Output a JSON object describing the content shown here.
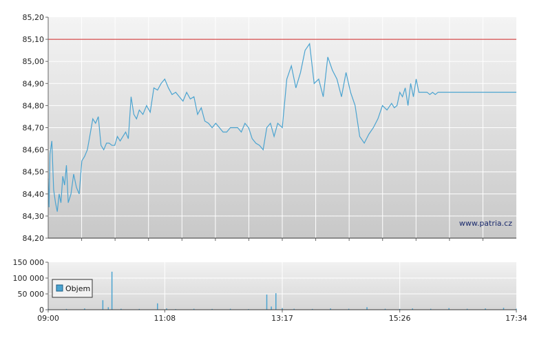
{
  "chart_data": [
    {
      "type": "line",
      "title": "",
      "xlabel": "",
      "ylabel": "",
      "ylim": [
        84.2,
        85.2
      ],
      "y_ticks": [
        "84,20",
        "84,30",
        "84,40",
        "84,50",
        "84,60",
        "84,70",
        "84,80",
        "84,90",
        "85,00",
        "85,10",
        "85,20"
      ],
      "reference_line": {
        "value": 85.1,
        "color": "#cc2222"
      },
      "grid": true,
      "line_color": "#4aa3d0",
      "watermark": "www.patria.cz",
      "series": [
        {
          "x": [
            "09:00",
            "09:01",
            "09:02",
            "09:04",
            "09:06",
            "09:08",
            "09:10",
            "09:12",
            "09:14",
            "09:16",
            "09:18",
            "09:20",
            "09:22",
            "09:25",
            "09:28",
            "09:31",
            "09:34",
            "09:37",
            "09:40",
            "09:43",
            "09:46",
            "09:49",
            "09:52",
            "09:55",
            "09:58",
            "10:01",
            "10:04",
            "10:07",
            "10:10",
            "10:13",
            "10:16",
            "10:19",
            "10:22",
            "10:25",
            "10:28",
            "10:31",
            "10:34",
            "10:37",
            "10:40",
            "10:44",
            "10:48",
            "10:52",
            "10:56",
            "11:00",
            "11:04",
            "11:08",
            "11:12",
            "11:16",
            "11:20",
            "11:24",
            "11:28",
            "11:32",
            "11:36",
            "11:40",
            "11:44",
            "11:48",
            "11:52",
            "11:56",
            "12:00",
            "12:04",
            "12:08",
            "12:12",
            "12:16",
            "12:20",
            "12:24",
            "12:28",
            "12:32",
            "12:36",
            "12:40",
            "12:44",
            "12:48",
            "12:52",
            "12:56",
            "13:00",
            "13:04",
            "13:08",
            "13:12",
            "13:17",
            "13:22",
            "13:27",
            "13:32",
            "13:37",
            "13:42",
            "13:47",
            "13:52",
            "13:57",
            "14:02",
            "14:07",
            "14:12",
            "14:17",
            "14:22",
            "14:27",
            "14:32",
            "14:37",
            "14:42",
            "14:47",
            "14:52",
            "14:57",
            "15:02",
            "15:07",
            "15:12",
            "15:17",
            "15:20",
            "15:23",
            "15:26",
            "15:29",
            "15:32",
            "15:35",
            "15:38",
            "15:41",
            "15:44",
            "15:47",
            "15:50",
            "15:53",
            "15:56",
            "15:59",
            "16:02",
            "16:05",
            "16:08",
            "16:11",
            "16:14",
            "16:17",
            "16:20",
            "16:23",
            "16:26",
            "16:30",
            "16:34",
            "16:38",
            "16:42",
            "16:46",
            "16:50",
            "16:54",
            "16:58",
            "17:02",
            "17:06",
            "17:10",
            "17:14",
            "17:18",
            "17:22",
            "17:26",
            "17:30",
            "17:34"
          ],
          "values": [
            84.47,
            84.34,
            84.58,
            84.64,
            84.42,
            84.36,
            84.32,
            84.4,
            84.36,
            84.48,
            84.44,
            84.53,
            84.36,
            84.4,
            84.49,
            84.43,
            84.4,
            84.55,
            84.57,
            84.6,
            84.67,
            84.74,
            84.72,
            84.75,
            84.62,
            84.6,
            84.63,
            84.63,
            84.62,
            84.62,
            84.66,
            84.64,
            84.66,
            84.68,
            84.65,
            84.84,
            84.76,
            84.74,
            84.78,
            84.76,
            84.8,
            84.77,
            84.88,
            84.87,
            84.9,
            84.92,
            84.88,
            84.85,
            84.86,
            84.84,
            84.82,
            84.86,
            84.83,
            84.84,
            84.76,
            84.79,
            84.73,
            84.72,
            84.7,
            84.72,
            84.7,
            84.68,
            84.68,
            84.7,
            84.7,
            84.7,
            84.68,
            84.72,
            84.7,
            84.65,
            84.63,
            84.62,
            84.6,
            84.7,
            84.72,
            84.66,
            84.72,
            84.7,
            84.92,
            84.98,
            84.88,
            84.95,
            85.05,
            85.08,
            84.9,
            84.92,
            84.84,
            85.02,
            84.96,
            84.92,
            84.84,
            84.95,
            84.86,
            84.8,
            84.66,
            84.63,
            84.67,
            84.7,
            84.74,
            84.8,
            84.78,
            84.81,
            84.79,
            84.8,
            84.86,
            84.84,
            84.88,
            84.8,
            84.9,
            84.84,
            84.92,
            84.86,
            84.86,
            84.86,
            84.86,
            84.85,
            84.86,
            84.85,
            84.86,
            84.86,
            84.86,
            84.86,
            84.86,
            84.86,
            84.86,
            84.86,
            84.86,
            84.86,
            84.86,
            84.86,
            84.86,
            84.86,
            84.86,
            84.86,
            84.86,
            84.86,
            84.86,
            84.86,
            84.86,
            84.86,
            84.86,
            84.86
          ]
        }
      ]
    },
    {
      "type": "bar",
      "title": "",
      "xlabel": "",
      "ylabel": "",
      "ylim": [
        0,
        150000
      ],
      "y_ticks": [
        "0",
        "50 000",
        "100 000",
        "150 000"
      ],
      "x_ticks": [
        "09:00",
        "11:08",
        "13:17",
        "15:26",
        "17:34"
      ],
      "legend": {
        "label": "Objem",
        "position": "left"
      },
      "grid": true,
      "bar_color": "#4aa3d0",
      "series": [
        {
          "name": "Objem",
          "x": [
            "09:00",
            "09:20",
            "09:40",
            "10:00",
            "10:06",
            "10:10",
            "10:20",
            "10:40",
            "11:00",
            "11:10",
            "11:20",
            "11:40",
            "12:00",
            "12:20",
            "12:40",
            "13:00",
            "13:05",
            "13:10",
            "13:17",
            "13:30",
            "13:50",
            "14:10",
            "14:30",
            "14:50",
            "15:10",
            "15:26",
            "15:40",
            "16:00",
            "16:20",
            "16:40",
            "17:00",
            "17:20",
            "17:34"
          ],
          "values": [
            3000,
            2500,
            4000,
            30000,
            8000,
            120000,
            3000,
            2500,
            20000,
            4000,
            2000,
            3000,
            2500,
            3000,
            2000,
            48000,
            10000,
            52000,
            5000,
            3000,
            2500,
            4000,
            3000,
            8000,
            3000,
            2500,
            4000,
            3000,
            5000,
            3000,
            4000,
            6000,
            3000
          ]
        }
      ]
    }
  ]
}
